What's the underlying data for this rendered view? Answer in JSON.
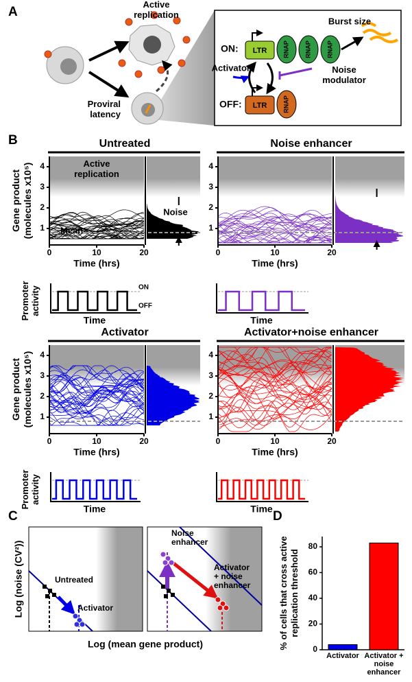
{
  "panel_labels": [
    "A",
    "B",
    "C",
    "D"
  ],
  "panel_a": {
    "active_replication": [
      "Active",
      "replication"
    ],
    "proviral_latency": [
      "Proviral",
      "latency"
    ],
    "on_label": "ON:",
    "off_label": "OFF:",
    "ltr": "LTR",
    "rnap": "RNAP",
    "burst_size": "Burst size",
    "activator": "Activator",
    "noise_modulator": [
      "Noise",
      "modulator"
    ]
  },
  "chart_data": [
    {
      "type": "line",
      "title": "Untreated",
      "ylabel": [
        "Gene product",
        "(molecules x10⁵)"
      ],
      "xlabel": "Time (hrs)",
      "xlim": [
        0,
        20
      ],
      "xticks": [
        0,
        10,
        20
      ],
      "ylim": [
        0.2,
        4.5
      ],
      "yticks": [
        1,
        2,
        3,
        4
      ],
      "color": "#000000",
      "band": [
        0.5,
        2.2
      ],
      "peak": 0.8,
      "mean": 0.8,
      "threshold": 3.2,
      "annotations": {
        "active": [
          "Active",
          "replication"
        ],
        "noise": "Noise",
        "mean": "Mean"
      },
      "promoter": {
        "ylabel": [
          "Promoter",
          "activity"
        ],
        "xlabel": "Time",
        "on": "ON",
        "off": "OFF",
        "pulses": 4
      }
    },
    {
      "type": "line",
      "title": "Noise enhancer",
      "xlabel": "Time (hrs)",
      "xlim": [
        0,
        20
      ],
      "xticks": [
        0,
        10,
        20
      ],
      "ylim": [
        0.2,
        4.5
      ],
      "yticks": [
        1,
        2,
        3,
        4
      ],
      "color": "#7b2fc4",
      "band": [
        0.3,
        2.6
      ],
      "peak": 0.6,
      "mean": 0.8,
      "threshold": 3.2,
      "promoter": {
        "xlabel": "Time",
        "pulses": 3
      }
    },
    {
      "type": "line",
      "title": "Activator",
      "ylabel": [
        "Gene product",
        "(molecules x10⁵)"
      ],
      "xlabel": "Time (hrs)",
      "xlim": [
        0,
        20
      ],
      "xticks": [
        0,
        10,
        20
      ],
      "ylim": [
        0.2,
        4.5
      ],
      "yticks": [
        1,
        2,
        3,
        4
      ],
      "color": "#0000e6",
      "band": [
        0.6,
        3.5
      ],
      "peak": 1.8,
      "mean": 0.8,
      "threshold": 3.2,
      "promoter": {
        "ylabel": [
          "Promoter",
          "activity"
        ],
        "xlabel": "Time",
        "pulses": 6
      }
    },
    {
      "type": "line",
      "title": "Activator+noise enhancer",
      "xlabel": "Time (hrs)",
      "xlim": [
        0,
        20
      ],
      "xticks": [
        0,
        10,
        20
      ],
      "ylim": [
        0.2,
        4.5
      ],
      "yticks": [
        1,
        2,
        3,
        4
      ],
      "color": "#ff0000",
      "band": [
        0.3,
        4.4
      ],
      "peak": 2.8,
      "mean": 0.8,
      "threshold": 3.2,
      "promoter": {
        "xlabel": "Time",
        "pulses": 7
      }
    },
    {
      "type": "bar",
      "ylabel": [
        "% of cells that cross active",
        "replication threshold"
      ],
      "categories": [
        "Activator",
        "Activator + noise enhancer"
      ],
      "values": [
        4,
        83
      ],
      "colors": [
        "#0000e6",
        "#ff0000"
      ],
      "ylim": [
        0,
        88
      ],
      "yticks": [
        0,
        20,
        40,
        60,
        80
      ]
    }
  ],
  "panel_c": {
    "ylabel": "Log (noise (CV²))",
    "xlabel": "Log (mean gene product)",
    "untreated": "Untreated",
    "activator": "Activator",
    "noise_enhancer": [
      "Noise",
      "enhancer"
    ],
    "activator_noise": [
      "Activator",
      "+ noise",
      "enhancer"
    ]
  }
}
